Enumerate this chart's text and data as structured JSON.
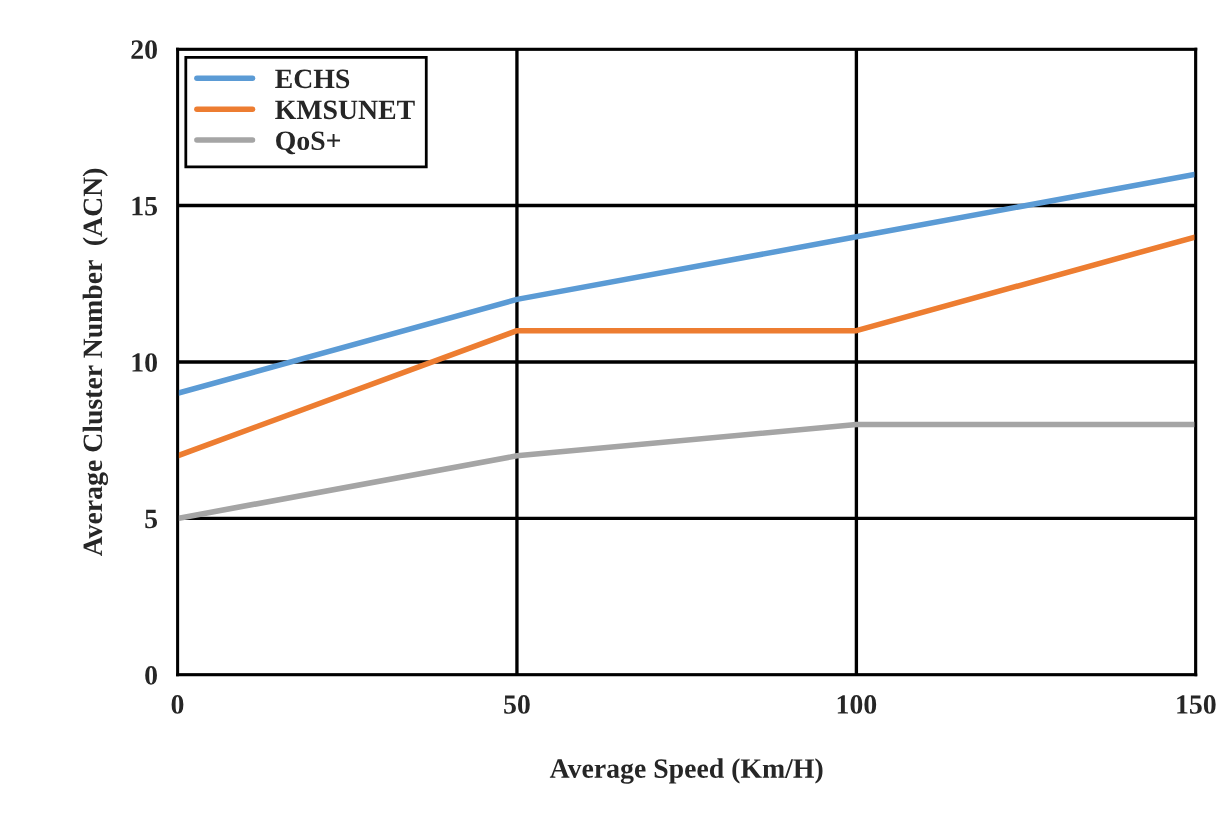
{
  "chart_data": {
    "type": "line",
    "xlabel": "Average Speed (Km/H)",
    "ylabel": "Average Cluster Number  (ACN)",
    "x": [
      0,
      50,
      100,
      150
    ],
    "series": [
      {
        "name": "ECHS",
        "color": "#5b9bd5",
        "values": [
          9,
          12,
          14,
          16
        ]
      },
      {
        "name": "KMSUNET",
        "color": "#ed7d31",
        "values": [
          7,
          11,
          11,
          14
        ]
      },
      {
        "name": "QoS+",
        "color": "#a5a5a5",
        "values": [
          5,
          7,
          8,
          8
        ]
      }
    ],
    "xlim": [
      0,
      150
    ],
    "ylim": [
      0,
      20
    ],
    "xticks": [
      0,
      50,
      100,
      150
    ],
    "yticks": [
      0,
      5,
      10,
      15,
      20
    ],
    "grid": true,
    "legend": "top left",
    "marker": "none",
    "line_style": "solid"
  }
}
